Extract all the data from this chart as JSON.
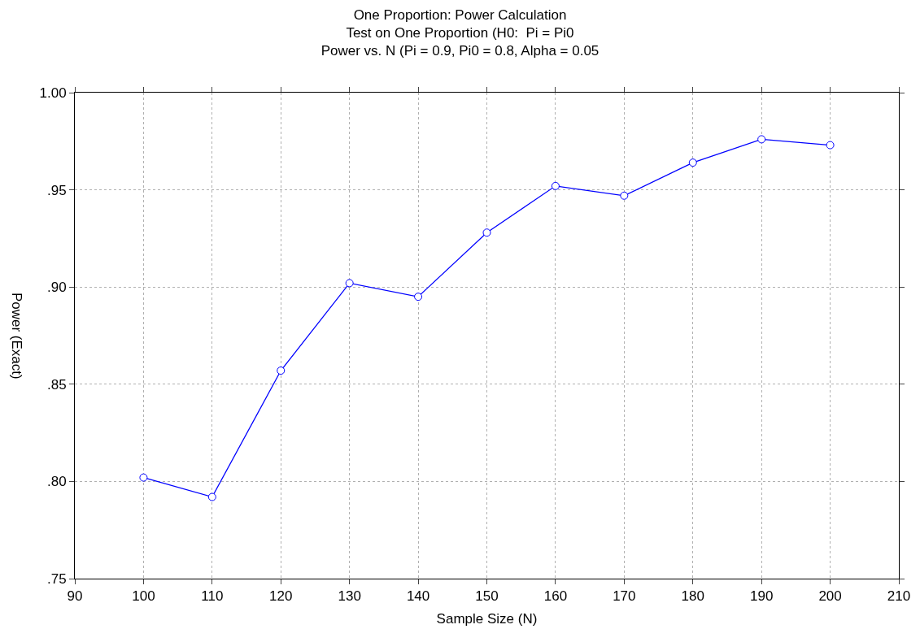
{
  "chart_data": {
    "type": "line",
    "title": "One Proportion: Power Calculation\nTest on One Proportion (H0:  Pi = Pi0\nPower vs. N (Pi = 0.9, Pi0 = 0.8, Alpha = 0.05",
    "xlabel": "Sample Size (N)",
    "ylabel": "Power (Exact)",
    "x": [
      100,
      110,
      120,
      130,
      140,
      150,
      160,
      170,
      180,
      190,
      200
    ],
    "series": [
      {
        "color": "#0000ff",
        "values": [
          0.802,
          0.792,
          0.857,
          0.902,
          0.895,
          0.928,
          0.952,
          0.947,
          0.964,
          0.976,
          0.973
        ]
      }
    ],
    "xlim": [
      90,
      210
    ],
    "xticks": [
      90,
      100,
      110,
      120,
      130,
      140,
      150,
      160,
      170,
      180,
      190,
      200,
      210
    ],
    "ylim": [
      0.75,
      1.0
    ],
    "yticks": [
      {
        "value": 0.75,
        "label": ".75"
      },
      {
        "value": 0.8,
        "label": ".80"
      },
      {
        "value": 0.85,
        "label": ".85"
      },
      {
        "value": 0.9,
        "label": ".90"
      },
      {
        "value": 0.95,
        "label": ".95"
      },
      {
        "value": 1.0,
        "label": "1.00"
      }
    ],
    "grid": true,
    "marker": "circle",
    "line_style": "solid"
  }
}
